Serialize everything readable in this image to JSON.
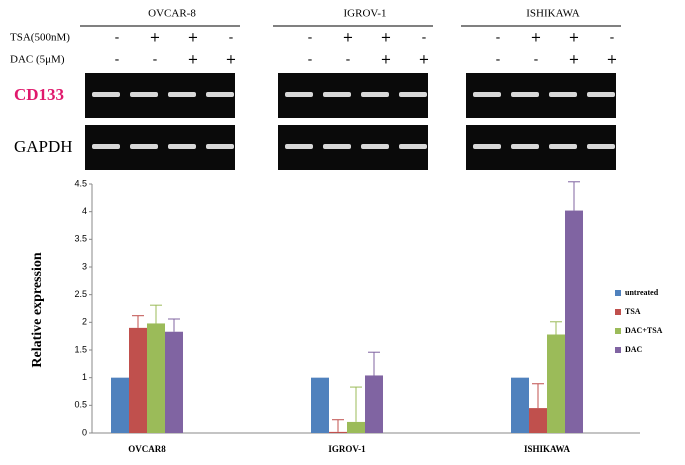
{
  "gel": {
    "groups": [
      "OVCAR-8",
      "IGROV-1",
      "ISHIKAWA"
    ],
    "treatments": [
      {
        "label": "TSA(500nM)",
        "signs": [
          "-",
          "+",
          "+",
          "-"
        ]
      },
      {
        "label": "DAC (5μM)",
        "signs": [
          "-",
          "-",
          "+",
          "+"
        ]
      }
    ],
    "bands": [
      {
        "label": "CD133",
        "color": "#e0186c"
      },
      {
        "label": "GAPDH",
        "color": "#000000"
      }
    ]
  },
  "chart_data": {
    "type": "bar",
    "y_label": "Relative expression",
    "categories": [
      "OVCAR8",
      "IGROV-1",
      "ISHIKAWA"
    ],
    "series": [
      {
        "name": "untreated",
        "color": "#4f81bd",
        "values": [
          1.0,
          1.0,
          1.0
        ]
      },
      {
        "name": "TSA",
        "color": "#c0504d",
        "values": [
          1.9,
          0.02,
          0.45
        ],
        "errors": [
          0.22,
          0.22,
          0.44
        ]
      },
      {
        "name": "DAC+TSA",
        "color": "#9bbb59",
        "values": [
          1.98,
          0.2,
          1.78
        ],
        "errors": [
          0.33,
          0.63,
          0.23
        ]
      },
      {
        "name": "DAC",
        "color": "#8064a2",
        "values": [
          1.83,
          1.04,
          4.02
        ],
        "errors": [
          0.23,
          0.42,
          0.52
        ]
      }
    ],
    "ylim": [
      0,
      4.5
    ],
    "yticks": [
      0,
      0.5,
      1,
      1.5,
      2,
      2.5,
      3,
      3.5,
      4,
      4.5
    ],
    "legend": "right"
  }
}
